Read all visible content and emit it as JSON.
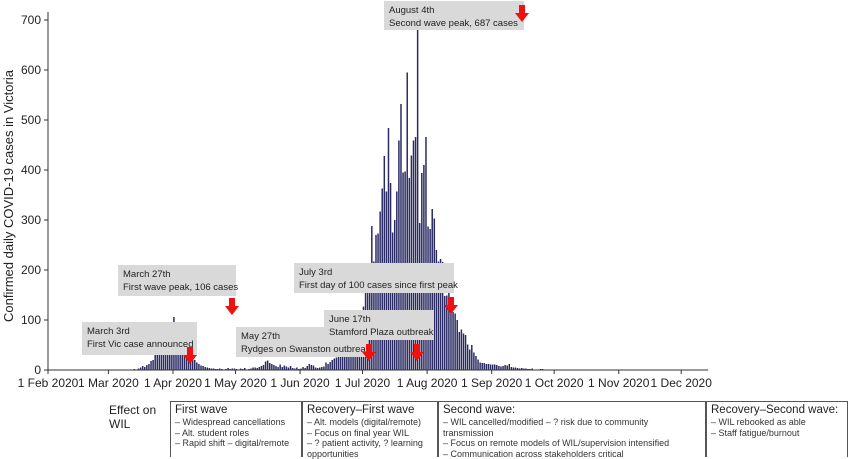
{
  "chart_data": {
    "type": "bar",
    "ylabel": "Confirmed daily COVID-19 cases in Victoria",
    "xlabel": "",
    "ylim": [
      0,
      700
    ],
    "yticks": [
      0,
      100,
      200,
      300,
      400,
      500,
      600,
      700
    ],
    "xtick_labels": [
      "1 Feb 2020",
      "1 Mar 2020",
      "1 Apr 2020",
      "1 May 2020",
      "1 Jun 2020",
      "1 Jul 2020",
      "1 Aug 2020",
      "1 Sep 2020",
      "1 Oct 2020",
      "1 Nov 2020",
      "1 Dec 2020"
    ],
    "bar_color": "#2b2b63",
    "callout_bg": "#d9d9d9",
    "arrow_color": "#ee1111",
    "series_daily_cases": [
      1,
      0,
      0,
      0,
      0,
      0,
      0,
      0,
      0,
      0,
      0,
      0,
      0,
      0,
      0,
      0,
      0,
      0,
      0,
      0,
      0,
      0,
      0,
      0,
      0,
      0,
      0,
      0,
      0,
      0,
      1,
      0,
      0,
      0,
      0,
      0,
      0,
      0,
      0,
      0,
      0,
      2,
      1,
      3,
      5,
      8,
      6,
      10,
      12,
      18,
      20,
      30,
      35,
      40,
      46,
      51,
      57,
      59,
      65,
      70,
      106,
      96,
      65,
      80,
      55,
      44,
      36,
      30,
      27,
      22,
      20,
      15,
      12,
      9,
      8,
      6,
      5,
      4,
      3,
      3,
      2,
      2,
      3,
      2,
      1,
      2,
      4,
      2,
      3,
      3,
      2,
      1,
      3,
      2,
      4,
      1,
      2,
      3,
      5,
      5,
      4,
      6,
      8,
      10,
      17,
      19,
      14,
      12,
      10,
      8,
      6,
      11,
      6,
      9,
      7,
      5,
      8,
      4,
      3,
      5,
      2,
      3,
      6,
      4,
      8,
      12,
      10,
      9,
      5,
      4,
      5,
      6,
      7,
      15,
      12,
      16,
      20,
      23,
      25,
      30,
      28,
      39,
      45,
      48,
      55,
      60,
      55,
      70,
      74,
      77,
      108,
      127,
      165,
      191,
      177,
      288,
      217,
      270,
      273,
      317,
      363,
      428,
      357,
      484,
      374,
      275,
      300,
      357,
      459,
      532,
      395,
      397,
      595,
      384,
      429,
      459,
      466,
      687,
      294,
      394,
      410,
      466,
      287,
      282,
      322,
      303,
      240,
      217,
      222,
      216,
      148,
      149,
      182,
      120,
      116,
      113,
      100,
      76,
      81,
      73,
      70,
      51,
      41,
      50,
      35,
      28,
      21,
      15,
      14,
      14,
      12,
      12,
      11,
      11,
      11,
      10,
      8,
      7,
      8,
      10,
      9,
      12,
      6,
      5,
      5,
      4,
      3,
      4,
      3,
      3,
      2,
      2,
      3,
      1,
      1,
      1,
      2,
      2,
      1,
      1,
      1,
      0,
      0,
      1,
      1,
      0,
      0,
      0,
      0,
      0,
      0,
      0,
      0,
      0,
      0,
      0,
      0,
      0,
      0,
      0,
      0,
      0,
      0,
      0,
      0,
      0,
      0,
      0,
      0,
      0,
      0,
      0,
      0,
      0,
      0,
      0,
      0,
      0,
      0,
      0,
      0,
      0,
      0,
      0,
      0,
      0,
      0,
      0,
      0,
      0,
      0,
      0,
      0,
      0,
      0,
      0,
      0,
      0,
      0,
      0,
      0,
      0,
      0,
      0,
      0,
      0,
      0,
      0,
      0,
      1,
      0,
      0,
      0,
      0,
      0
    ],
    "annotations": [
      {
        "line1": "March 3rd",
        "line2": "First Vic case announced",
        "day": 30
      },
      {
        "line1": "March 27th",
        "line2": "First wave peak, 106 cases",
        "day": 56
      },
      {
        "line1": "May 27th",
        "line2": "Rydges on Swanston outbreak",
        "day": 116
      },
      {
        "line1": "June 17th",
        "line2": "Stamford Plaza outbreak",
        "day": 137
      },
      {
        "line1": "July 3rd",
        "line2": "First day of 100 cases since first peak",
        "day": 153
      },
      {
        "line1": "August 4th",
        "line2": "Second wave peak, 687 cases",
        "day": 185
      }
    ]
  },
  "wil": {
    "heading": "Effect on WIL",
    "phases": [
      {
        "title": "First wave",
        "items": [
          "Widespread cancellations",
          "Alt. student roles",
          "Rapid shift – digital/remote"
        ]
      },
      {
        "title": "Recovery–First wave",
        "items": [
          "Alt. models (digital/remote)",
          "Focus on final year WIL",
          "? patient activity, ? learning opportunities"
        ]
      },
      {
        "title": "Second wave:",
        "items": [
          "WIL cancelled/modified – ? risk due to community transmission",
          "Focus on remote models of WIL/supervision intensified",
          "Communication across stakeholders critical"
        ]
      },
      {
        "title": "Recovery–Second wave:",
        "items": [
          "WIL rebooked as able",
          "Staff fatigue/burnout"
        ]
      }
    ]
  }
}
